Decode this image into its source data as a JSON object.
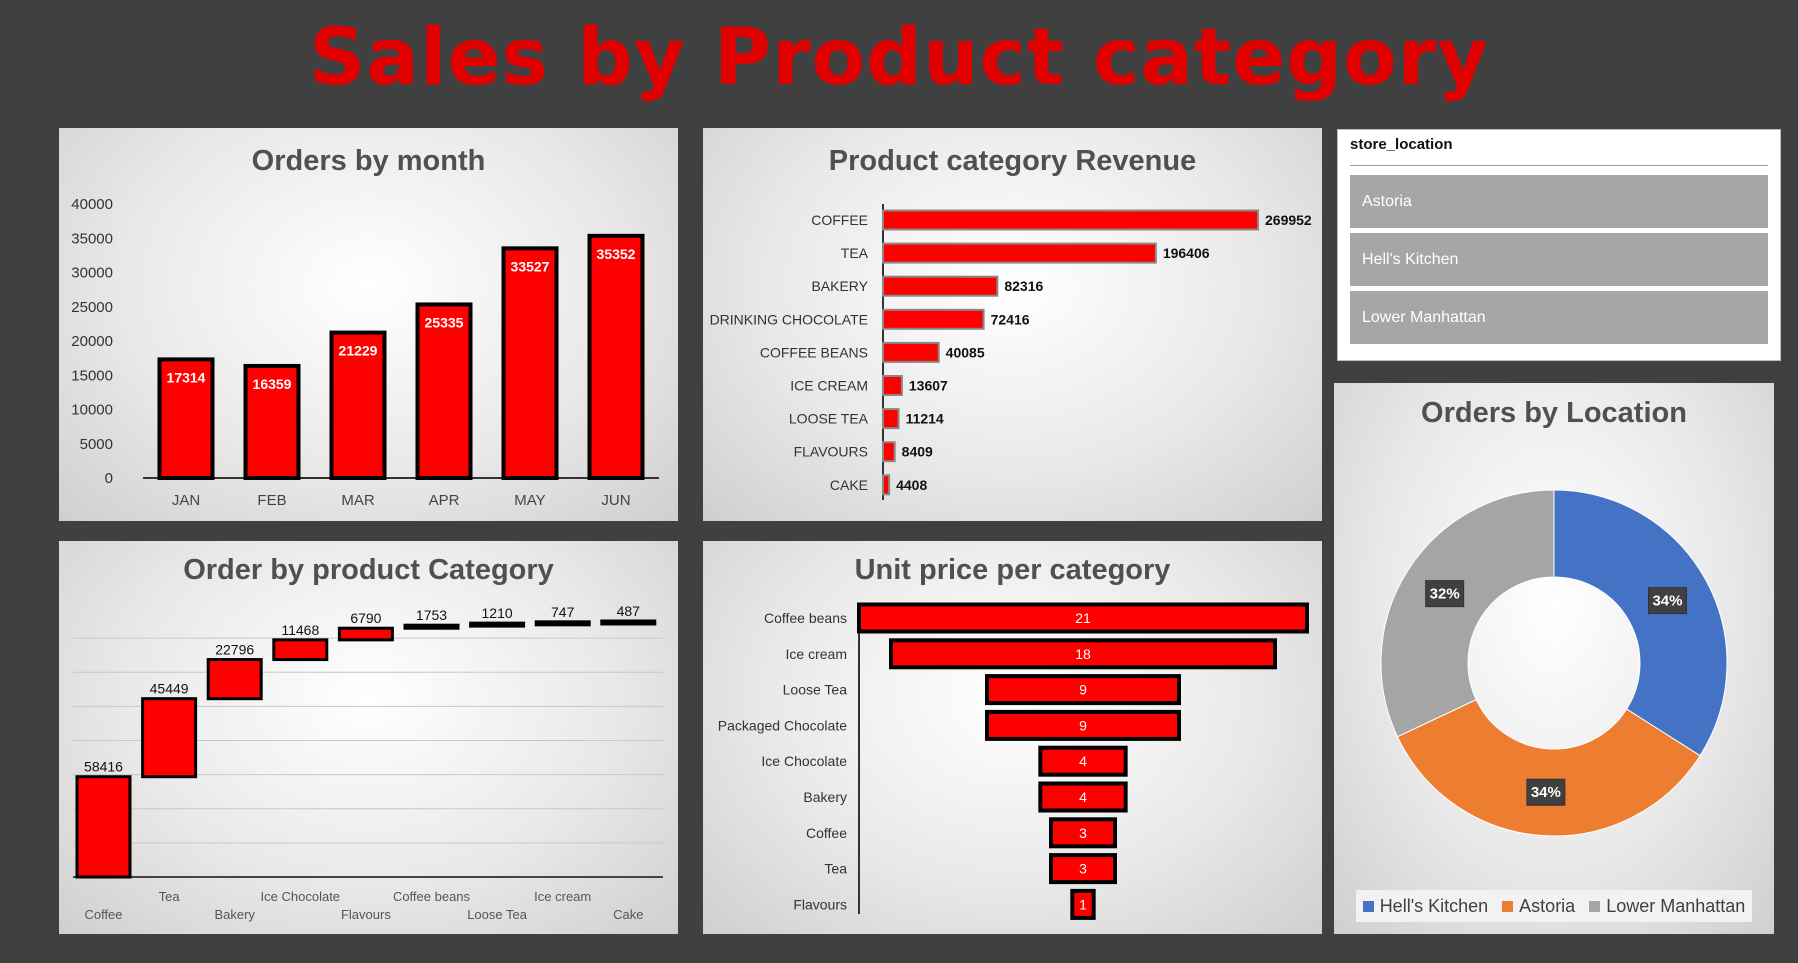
{
  "page": {
    "title": "Sales by Product category"
  },
  "colors": {
    "bar": "#ff0000",
    "outline": "#000000",
    "hells_kitchen": "#4472c4",
    "astoria": "#ed7d31",
    "lower_manhattan": "#a5a5a5",
    "title": "#e00000"
  },
  "slicer": {
    "title": "store_location",
    "items": [
      "Astoria",
      "Hell's Kitchen",
      "Lower Manhattan"
    ]
  },
  "charts": {
    "orders_by_month": {
      "title": "Orders by month"
    },
    "product_category_revenue": {
      "title": "Product category Revenue"
    },
    "order_by_product_category": {
      "title": "Order by product Category"
    },
    "unit_price_per_category": {
      "title": "Unit price per category"
    },
    "orders_by_location": {
      "title": "Orders by Location"
    }
  },
  "chart_data": [
    {
      "id": "orders_by_month",
      "type": "bar",
      "title": "Orders by month",
      "categories": [
        "JAN",
        "FEB",
        "MAR",
        "APR",
        "MAY",
        "JUN"
      ],
      "values": [
        17314,
        16359,
        21229,
        25335,
        33527,
        35352
      ],
      "ylim": [
        0,
        40000
      ],
      "yticks": [
        0,
        5000,
        10000,
        15000,
        20000,
        25000,
        30000,
        35000,
        40000
      ],
      "data_labels": true
    },
    {
      "id": "product_category_revenue",
      "type": "bar",
      "orientation": "horizontal",
      "title": "Product category Revenue",
      "categories": [
        "COFFEE",
        "TEA",
        "BAKERY",
        "DRINKING CHOCOLATE",
        "COFFEE BEANS",
        "ICE CREAM",
        "LOOSE TEA",
        "FLAVOURS",
        "CAKE"
      ],
      "values": [
        269952,
        196406,
        82316,
        72416,
        40085,
        13607,
        11214,
        8409,
        4408
      ],
      "data_labels": true
    },
    {
      "id": "order_by_product_category",
      "type": "bar",
      "subtype": "waterfall",
      "title": "Order by product Category",
      "categories": [
        "Coffee",
        "Tea",
        "Bakery",
        "Ice Chocolate",
        "Flavours",
        "Coffee beans",
        "Loose Tea",
        "Ice cream",
        "Cake"
      ],
      "values": [
        58416,
        45449,
        22796,
        11468,
        6790,
        1753,
        1210,
        747,
        487
      ],
      "grid": true,
      "data_labels": true
    },
    {
      "id": "unit_price_per_category",
      "type": "bar",
      "subtype": "funnel",
      "title": "Unit price per category",
      "categories": [
        "Coffee beans",
        "Ice cream",
        "Loose Tea",
        "Packaged Chocolate",
        "Ice Chocolate",
        "Bakery",
        "Coffee",
        "Tea",
        "Flavours"
      ],
      "values": [
        21,
        18,
        9,
        9,
        4,
        4,
        3,
        3,
        1
      ],
      "data_labels": true
    },
    {
      "id": "orders_by_location",
      "type": "pie",
      "subtype": "donut",
      "title": "Orders by Location",
      "labels": [
        "Hell's Kitchen",
        "Astoria",
        "Lower Manhattan"
      ],
      "values": [
        34,
        34,
        32
      ],
      "value_labels": [
        "34%",
        "34%",
        "32%"
      ],
      "colors": [
        "#4472c4",
        "#ed7d31",
        "#a5a5a5"
      ],
      "legend": "bottom"
    }
  ]
}
